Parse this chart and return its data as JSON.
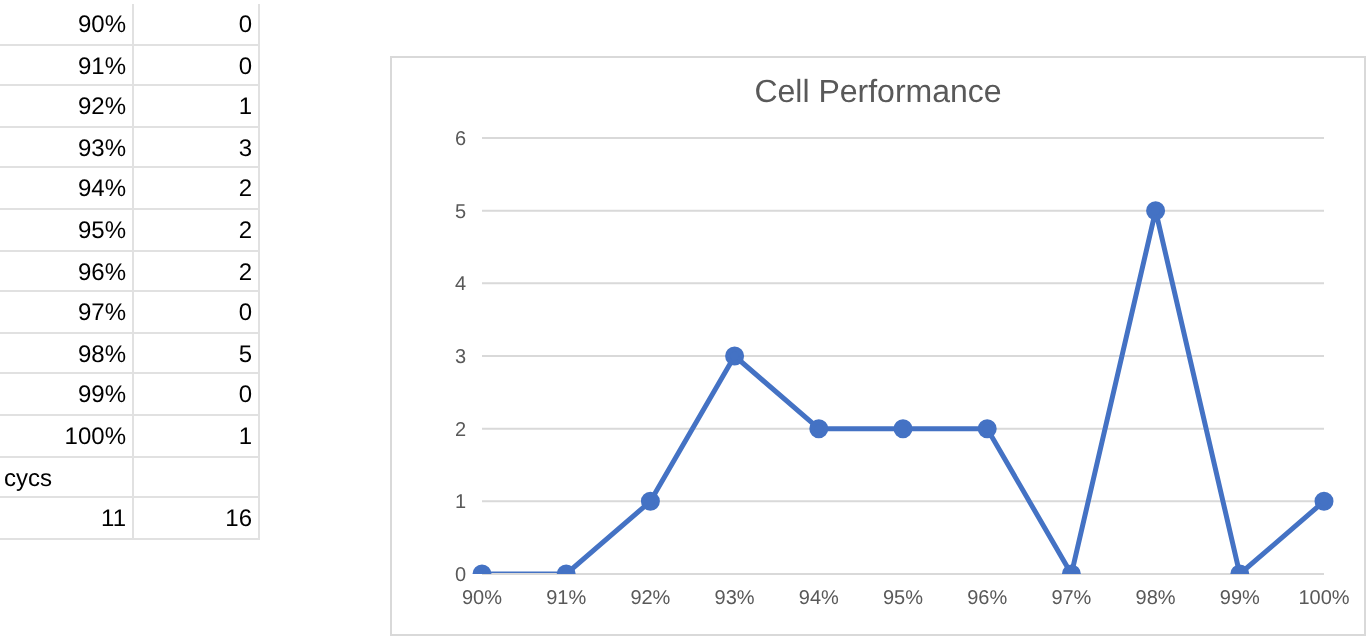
{
  "chart_data": {
    "type": "line",
    "title": "Cell Performance",
    "categories": [
      "90%",
      "91%",
      "92%",
      "93%",
      "94%",
      "95%",
      "96%",
      "97%",
      "98%",
      "99%",
      "100%"
    ],
    "series": [
      {
        "color": "#4472c4",
        "values": [
          0,
          0,
          1,
          3,
          2,
          2,
          2,
          0,
          5,
          0,
          1
        ]
      }
    ],
    "ylim": [
      0,
      6
    ],
    "yticks": [
      0,
      1,
      2,
      3,
      4,
      5,
      6
    ],
    "grid": "y",
    "marker": "circle",
    "line_style": "solid",
    "legend": false,
    "annotations": [
      "0",
      "0",
      "1",
      "3",
      "2",
      "2",
      "2",
      "0",
      "5",
      "0",
      "1",
      "cycs",
      "11",
      "16"
    ]
  }
}
